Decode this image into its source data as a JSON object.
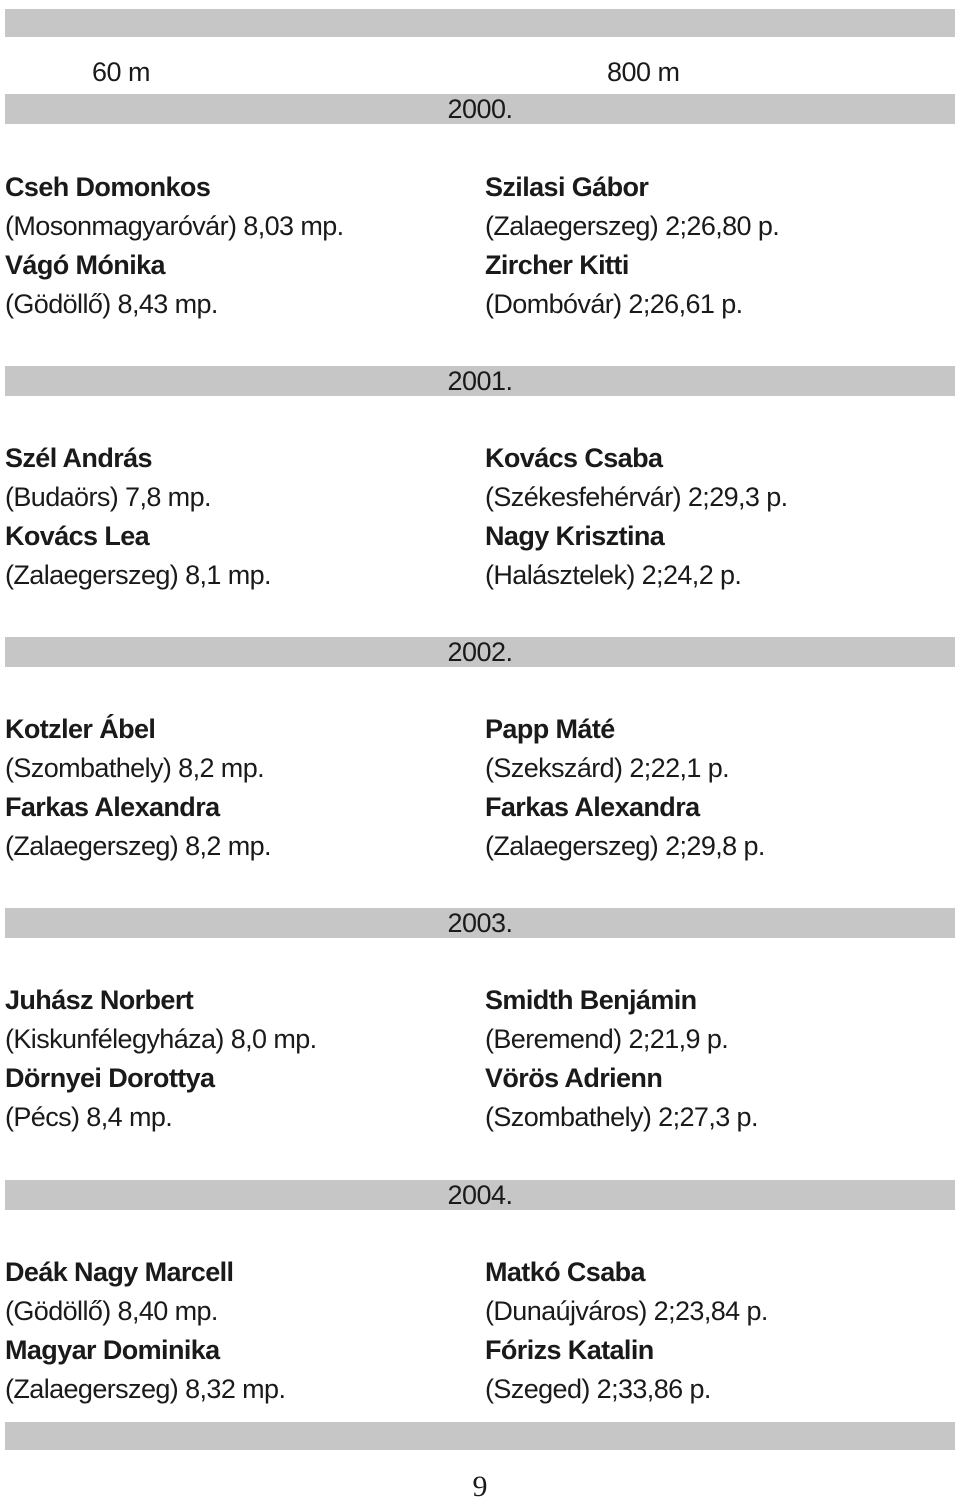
{
  "headings": {
    "left": "60 m",
    "right": "800 m"
  },
  "years": [
    {
      "year": "2000.",
      "left": [
        {
          "name": "Cseh Domonkos",
          "detail": "(Mosonmagyaróvár) 8,03 mp."
        },
        {
          "name": "Vágó Mónika",
          "detail": "(Gödöllő) 8,43 mp."
        }
      ],
      "right": [
        {
          "name": "Szilasi Gábor",
          "detail": "(Zalaegerszeg) 2;26,80 p."
        },
        {
          "name": "Zircher Kitti",
          "detail": "(Dombóvár) 2;26,61 p."
        }
      ]
    },
    {
      "year": "2001.",
      "left": [
        {
          "name": "Szél András",
          "detail": "(Budaörs) 7,8 mp."
        },
        {
          "name": "Kovács Lea",
          "detail": "(Zalaegerszeg) 8,1 mp."
        }
      ],
      "right": [
        {
          "name": "Kovács Csaba",
          "detail": "(Székesfehérvár) 2;29,3 p."
        },
        {
          "name": "Nagy Krisztina",
          "detail": "(Halásztelek) 2;24,2 p."
        }
      ]
    },
    {
      "year": "2002.",
      "left": [
        {
          "name": "Kotzler Ábel",
          "detail": "(Szombathely) 8,2 mp."
        },
        {
          "name": "Farkas Alexandra",
          "detail": "(Zalaegerszeg) 8,2 mp."
        }
      ],
      "right": [
        {
          "name": "Papp Máté",
          "detail": "(Szekszárd) 2;22,1 p."
        },
        {
          "name": "Farkas Alexandra",
          "detail": "(Zalaegerszeg) 2;29,8 p."
        }
      ]
    },
    {
      "year": "2003.",
      "left": [
        {
          "name": "Juhász Norbert",
          "detail": "(Kiskunfélegyháza) 8,0 mp."
        },
        {
          "name": "Dörnyei Dorottya",
          "detail": "(Pécs) 8,4 mp."
        }
      ],
      "right": [
        {
          "name": "Smidth Benjámin",
          "detail": "(Beremend) 2;21,9 p."
        },
        {
          "name": "Vörös Adrienn",
          "detail": "(Szombathely) 2;27,3 p."
        }
      ]
    },
    {
      "year": "2004.",
      "left": [
        {
          "name": "Deák Nagy Marcell",
          "detail": "(Gödöllő) 8,40 mp."
        },
        {
          "name": "Magyar Dominika",
          "detail": "(Zalaegerszeg) 8,32 mp."
        }
      ],
      "right": [
        {
          "name": "Matkó Csaba",
          "detail": "(Dunaújváros) 2;23,84 p."
        },
        {
          "name": "Fórizs Katalin",
          "detail": "(Szeged) 2;33,86 p."
        }
      ]
    }
  ],
  "page_number": "9"
}
